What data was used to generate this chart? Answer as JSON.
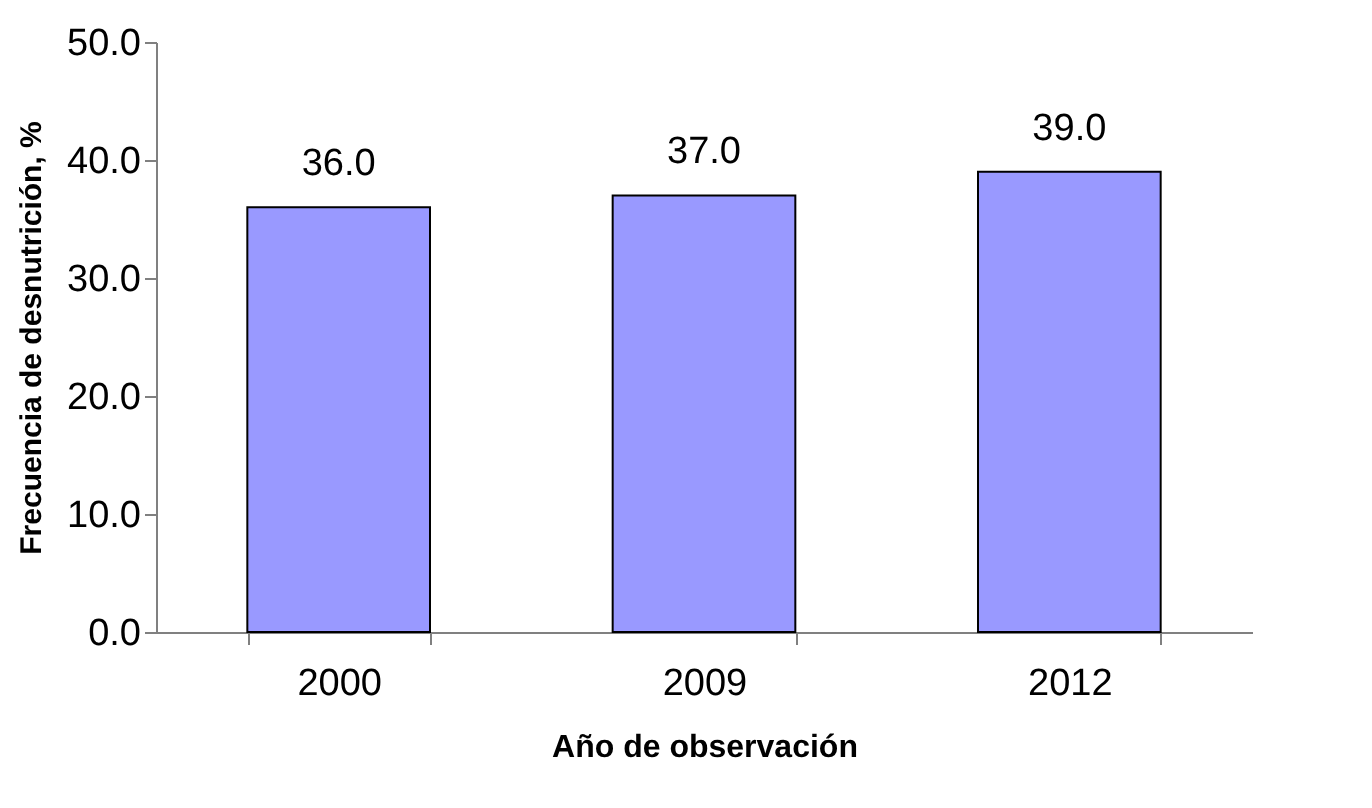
{
  "chart_data": {
    "type": "bar",
    "categories": [
      "2000",
      "2009",
      "2012"
    ],
    "values": [
      36.0,
      37.0,
      39.0
    ],
    "value_labels": [
      "36.0",
      "37.0",
      "39.0"
    ],
    "color": "#9999ff",
    "xlabel": "Año de observación",
    "ylabel": "Frecuencia de desnutrición, %",
    "ylim": [
      0,
      50
    ],
    "yticks": [
      {
        "value": 0,
        "label": "0.0"
      },
      {
        "value": 10,
        "label": "10.0"
      },
      {
        "value": 20,
        "label": "20.0"
      },
      {
        "value": 30,
        "label": "30.0"
      },
      {
        "value": 40,
        "label": "40.0"
      },
      {
        "value": 50,
        "label": "50.0"
      }
    ],
    "grid": false
  }
}
